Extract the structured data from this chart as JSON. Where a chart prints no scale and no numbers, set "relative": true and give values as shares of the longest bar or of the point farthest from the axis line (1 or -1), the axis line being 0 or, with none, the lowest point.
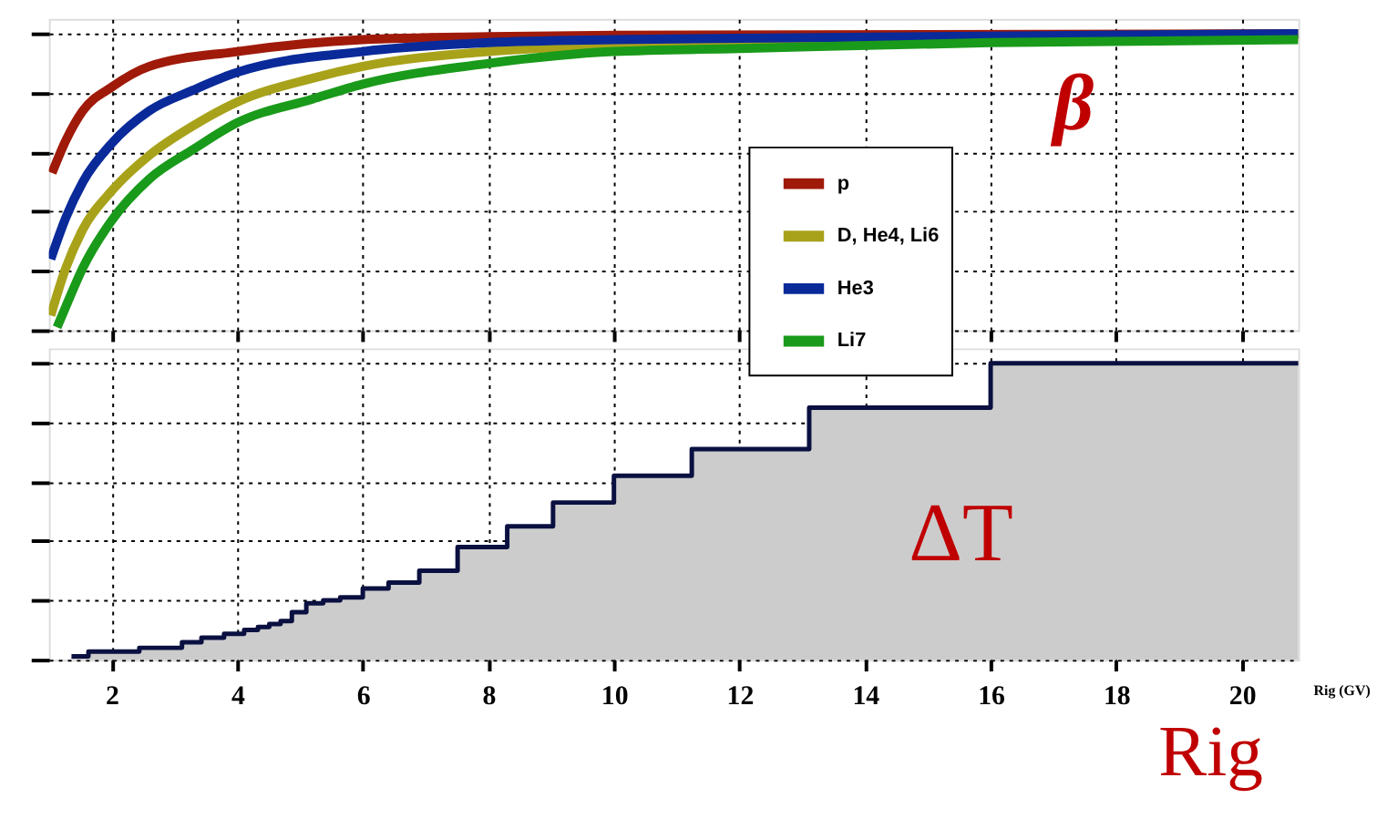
{
  "chart_data": [
    {
      "type": "line",
      "relative": true,
      "xlim": [
        1,
        20.9
      ],
      "xticks": [
        2,
        4,
        6,
        8,
        10,
        12,
        14,
        16,
        18,
        20
      ],
      "tick_labels": false,
      "grid": true,
      "legend": "right",
      "annotations": [
        "β"
      ],
      "series": [
        {
          "name": "p",
          "color": "#a01a0a",
          "x": [
            1.05,
            1.27,
            1.54,
            2,
            2.6,
            4,
            6,
            8,
            10,
            20.9
          ],
          "values": [
            0.53,
            0.64,
            0.74,
            0.82,
            0.89,
            0.94,
            0.98,
            0.99,
            0.995,
            1.0
          ]
        },
        {
          "name": "D, He4, Li6",
          "color": "#a8a21a",
          "x": [
            1.03,
            1.27,
            1.54,
            2,
            2.6,
            3.3,
            4,
            5.2,
            6,
            8,
            10,
            12,
            20.9
          ],
          "values": [
            0.05,
            0.21,
            0.34,
            0.47,
            0.59,
            0.69,
            0.77,
            0.85,
            0.89,
            0.94,
            0.96,
            0.97,
            0.99
          ]
        },
        {
          "name": "He3",
          "color": "#0a2a9a",
          "x": [
            1.03,
            1.27,
            1.54,
            2,
            2.6,
            3.3,
            4,
            6,
            8,
            10,
            12,
            20.9
          ],
          "values": [
            0.24,
            0.38,
            0.5,
            0.63,
            0.74,
            0.81,
            0.87,
            0.94,
            0.97,
            0.98,
            0.985,
            1.0
          ]
        },
        {
          "name": "Li7",
          "color": "#1a9a1a",
          "x": [
            1.13,
            1.27,
            1.54,
            2,
            2.6,
            3.3,
            4,
            5.2,
            6,
            8,
            10,
            12,
            16,
            20.9
          ],
          "values": [
            0.01,
            0.08,
            0.21,
            0.37,
            0.51,
            0.61,
            0.7,
            0.78,
            0.83,
            0.9,
            0.94,
            0.95,
            0.97,
            0.98
          ]
        }
      ]
    },
    {
      "type": "step",
      "relative": true,
      "xlim": [
        1,
        20.9
      ],
      "xticks": [
        2,
        4,
        6,
        8,
        10,
        12,
        14,
        16,
        18,
        20
      ],
      "tick_labels": "x",
      "grid": true,
      "xlabel": "Rig (GV)",
      "annotations": [
        "ΔT",
        "Rig"
      ],
      "series": [
        {
          "type": "area",
          "color": "#cccccc",
          "x": [
            1.36,
            1.63,
            2.44,
            3.12,
            3.43,
            3.79,
            4.11,
            4.33,
            4.51,
            4.69,
            4.87,
            5.1,
            5.37,
            5.64,
            6.0,
            6.41,
            6.9,
            7.51,
            8.3,
            9.03,
            10.0,
            11.24,
            13.11,
            16.0,
            20.9
          ],
          "values": [
            0.011,
            0.027,
            0.04,
            0.059,
            0.074,
            0.087,
            0.1,
            0.11,
            0.12,
            0.13,
            0.16,
            0.19,
            0.2,
            0.21,
            0.24,
            0.26,
            0.3,
            0.38,
            0.45,
            0.53,
            0.62,
            0.71,
            0.85,
            1.0,
            1.0
          ]
        },
        {
          "type": "step",
          "color": "#0a1040",
          "x": [
            1.36,
            1.63,
            2.44,
            3.12,
            3.43,
            3.79,
            4.11,
            4.33,
            4.51,
            4.69,
            4.87,
            5.1,
            5.37,
            5.64,
            6.0,
            6.41,
            6.9,
            7.51,
            8.3,
            9.03,
            10.0,
            11.24,
            13.11,
            16.0,
            20.9
          ],
          "values": [
            0.011,
            0.027,
            0.04,
            0.059,
            0.074,
            0.087,
            0.1,
            0.11,
            0.12,
            0.13,
            0.16,
            0.19,
            0.2,
            0.21,
            0.24,
            0.26,
            0.3,
            0.38,
            0.45,
            0.53,
            0.62,
            0.71,
            0.85,
            1.0,
            1.0
          ]
        }
      ]
    }
  ]
}
